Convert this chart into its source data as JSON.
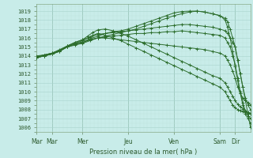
{
  "background_color": "#c8ece9",
  "grid_color_major": "#a8d4ce",
  "grid_color_minor": "#c0e4df",
  "line_color": "#2d6e2d",
  "ylabel_ticks": [
    1006,
    1007,
    1008,
    1009,
    1010,
    1011,
    1012,
    1013,
    1014,
    1015,
    1016,
    1017,
    1018,
    1019
  ],
  "ylim": [
    1005.5,
    1019.8
  ],
  "xlabel": "Pression niveau de la mer( hPa )",
  "xtick_labels": [
    "Mar",
    "Mar",
    "Mer",
    "Jeu",
    "Ven",
    "Sam",
    "Dir"
  ],
  "xtick_positions": [
    0,
    12,
    36,
    72,
    108,
    144,
    156
  ],
  "total_points": 168,
  "series": [
    {
      "points": [
        [
          0,
          1013.8
        ],
        [
          6,
          1014.0
        ],
        [
          12,
          1014.2
        ],
        [
          18,
          1014.5
        ],
        [
          24,
          1015.0
        ],
        [
          30,
          1015.3
        ],
        [
          36,
          1015.5
        ],
        [
          42,
          1015.8
        ],
        [
          48,
          1016.0
        ],
        [
          54,
          1016.2
        ],
        [
          60,
          1016.4
        ],
        [
          66,
          1016.6
        ],
        [
          72,
          1016.8
        ],
        [
          78,
          1017.0
        ],
        [
          84,
          1017.3
        ],
        [
          90,
          1017.6
        ],
        [
          96,
          1017.9
        ],
        [
          102,
          1018.2
        ],
        [
          108,
          1018.5
        ],
        [
          114,
          1018.7
        ],
        [
          120,
          1018.9
        ],
        [
          126,
          1019.0
        ],
        [
          132,
          1018.9
        ],
        [
          138,
          1018.7
        ],
        [
          144,
          1018.5
        ],
        [
          148,
          1018.2
        ],
        [
          150,
          1017.8
        ],
        [
          152,
          1017.0
        ],
        [
          154,
          1016.0
        ],
        [
          156,
          1015.0
        ],
        [
          158,
          1013.5
        ],
        [
          160,
          1012.0
        ],
        [
          162,
          1010.5
        ],
        [
          164,
          1009.0
        ],
        [
          166,
          1007.5
        ],
        [
          168,
          1006.0
        ]
      ]
    },
    {
      "points": [
        [
          0,
          1013.9
        ],
        [
          6,
          1014.1
        ],
        [
          12,
          1014.3
        ],
        [
          18,
          1014.6
        ],
        [
          24,
          1015.0
        ],
        [
          30,
          1015.3
        ],
        [
          36,
          1015.6
        ],
        [
          42,
          1015.9
        ],
        [
          48,
          1016.2
        ],
        [
          54,
          1016.5
        ],
        [
          60,
          1016.7
        ],
        [
          66,
          1016.8
        ],
        [
          72,
          1017.0
        ],
        [
          78,
          1017.3
        ],
        [
          84,
          1017.6
        ],
        [
          90,
          1017.9
        ],
        [
          96,
          1018.2
        ],
        [
          102,
          1018.5
        ],
        [
          108,
          1018.8
        ],
        [
          114,
          1018.95
        ],
        [
          120,
          1019.0
        ],
        [
          126,
          1019.0
        ],
        [
          132,
          1018.9
        ],
        [
          138,
          1018.7
        ],
        [
          144,
          1018.5
        ],
        [
          148,
          1018.0
        ],
        [
          150,
          1017.2
        ],
        [
          152,
          1016.0
        ],
        [
          154,
          1014.5
        ],
        [
          156,
          1012.8
        ],
        [
          158,
          1011.2
        ],
        [
          160,
          1009.8
        ],
        [
          162,
          1008.5
        ],
        [
          164,
          1007.5
        ],
        [
          166,
          1007.0
        ],
        [
          168,
          1006.5
        ]
      ]
    },
    {
      "points": [
        [
          0,
          1013.8
        ],
        [
          6,
          1014.0
        ],
        [
          12,
          1014.2
        ],
        [
          18,
          1014.6
        ],
        [
          24,
          1015.1
        ],
        [
          30,
          1015.5
        ],
        [
          36,
          1015.8
        ],
        [
          40,
          1016.2
        ],
        [
          44,
          1016.6
        ],
        [
          48,
          1016.9
        ],
        [
          54,
          1017.0
        ],
        [
          60,
          1016.8
        ],
        [
          66,
          1016.5
        ],
        [
          72,
          1016.2
        ],
        [
          78,
          1015.8
        ],
        [
          84,
          1015.4
        ],
        [
          90,
          1015.0
        ],
        [
          96,
          1014.6
        ],
        [
          102,
          1014.2
        ],
        [
          108,
          1013.8
        ],
        [
          114,
          1013.4
        ],
        [
          120,
          1013.0
        ],
        [
          126,
          1012.6
        ],
        [
          132,
          1012.2
        ],
        [
          138,
          1011.8
        ],
        [
          144,
          1011.5
        ],
        [
          148,
          1011.0
        ],
        [
          150,
          1010.5
        ],
        [
          152,
          1010.0
        ],
        [
          154,
          1009.5
        ],
        [
          156,
          1009.0
        ],
        [
          158,
          1008.6
        ],
        [
          160,
          1008.3
        ],
        [
          162,
          1008.1
        ],
        [
          164,
          1007.9
        ],
        [
          166,
          1007.7
        ],
        [
          168,
          1007.5
        ]
      ]
    },
    {
      "points": [
        [
          0,
          1013.8
        ],
        [
          6,
          1014.0
        ],
        [
          12,
          1014.2
        ],
        [
          18,
          1014.6
        ],
        [
          24,
          1015.1
        ],
        [
          30,
          1015.4
        ],
        [
          36,
          1015.7
        ],
        [
          40,
          1016.0
        ],
        [
          44,
          1016.3
        ],
        [
          48,
          1016.5
        ],
        [
          54,
          1016.3
        ],
        [
          60,
          1016.0
        ],
        [
          66,
          1015.7
        ],
        [
          72,
          1015.3
        ],
        [
          78,
          1014.9
        ],
        [
          84,
          1014.5
        ],
        [
          90,
          1014.1
        ],
        [
          96,
          1013.7
        ],
        [
          102,
          1013.3
        ],
        [
          108,
          1012.9
        ],
        [
          114,
          1012.5
        ],
        [
          120,
          1012.1
        ],
        [
          126,
          1011.7
        ],
        [
          132,
          1011.3
        ],
        [
          138,
          1010.9
        ],
        [
          144,
          1010.5
        ],
        [
          148,
          1010.0
        ],
        [
          150,
          1009.5
        ],
        [
          152,
          1009.0
        ],
        [
          154,
          1008.5
        ],
        [
          156,
          1008.2
        ],
        [
          158,
          1008.0
        ],
        [
          160,
          1007.9
        ],
        [
          162,
          1007.8
        ],
        [
          164,
          1007.7
        ],
        [
          166,
          1007.6
        ],
        [
          168,
          1007.5
        ]
      ]
    },
    {
      "points": [
        [
          0,
          1013.9
        ],
        [
          6,
          1014.1
        ],
        [
          12,
          1014.3
        ],
        [
          18,
          1014.7
        ],
        [
          24,
          1015.1
        ],
        [
          30,
          1015.5
        ],
        [
          36,
          1015.8
        ],
        [
          42,
          1016.1
        ],
        [
          48,
          1016.4
        ],
        [
          54,
          1016.5
        ],
        [
          60,
          1016.6
        ],
        [
          66,
          1016.7
        ],
        [
          72,
          1016.8
        ],
        [
          78,
          1016.9
        ],
        [
          84,
          1017.0
        ],
        [
          90,
          1017.1
        ],
        [
          96,
          1017.2
        ],
        [
          102,
          1017.3
        ],
        [
          108,
          1017.4
        ],
        [
          114,
          1017.5
        ],
        [
          120,
          1017.5
        ],
        [
          126,
          1017.4
        ],
        [
          132,
          1017.3
        ],
        [
          138,
          1017.2
        ],
        [
          144,
          1017.0
        ],
        [
          148,
          1016.8
        ],
        [
          150,
          1016.5
        ],
        [
          152,
          1016.0
        ],
        [
          154,
          1015.5
        ],
        [
          156,
          1015.0
        ],
        [
          158,
          1013.5
        ],
        [
          160,
          1012.0
        ],
        [
          162,
          1010.5
        ],
        [
          164,
          1009.3
        ],
        [
          166,
          1008.5
        ],
        [
          168,
          1008.0
        ]
      ]
    },
    {
      "points": [
        [
          0,
          1013.9
        ],
        [
          6,
          1014.0
        ],
        [
          12,
          1014.2
        ],
        [
          18,
          1014.5
        ],
        [
          24,
          1015.0
        ],
        [
          30,
          1015.3
        ],
        [
          36,
          1015.5
        ],
        [
          42,
          1015.8
        ],
        [
          48,
          1016.0
        ],
        [
          54,
          1016.1
        ],
        [
          60,
          1016.2
        ],
        [
          66,
          1016.3
        ],
        [
          72,
          1016.4
        ],
        [
          78,
          1016.5
        ],
        [
          84,
          1016.5
        ],
        [
          90,
          1016.6
        ],
        [
          96,
          1016.6
        ],
        [
          102,
          1016.7
        ],
        [
          108,
          1016.7
        ],
        [
          114,
          1016.8
        ],
        [
          120,
          1016.7
        ],
        [
          126,
          1016.6
        ],
        [
          132,
          1016.5
        ],
        [
          138,
          1016.4
        ],
        [
          144,
          1016.3
        ],
        [
          148,
          1016.0
        ],
        [
          150,
          1015.5
        ],
        [
          152,
          1015.0
        ],
        [
          154,
          1014.0
        ],
        [
          156,
          1013.0
        ],
        [
          158,
          1011.5
        ],
        [
          160,
          1010.0
        ],
        [
          162,
          1008.8
        ],
        [
          164,
          1007.8
        ],
        [
          166,
          1007.3
        ],
        [
          168,
          1007.0
        ]
      ]
    },
    {
      "points": [
        [
          0,
          1014.0
        ],
        [
          6,
          1014.1
        ],
        [
          12,
          1014.3
        ],
        [
          18,
          1014.6
        ],
        [
          24,
          1015.0
        ],
        [
          30,
          1015.2
        ],
        [
          36,
          1015.4
        ],
        [
          42,
          1015.7
        ],
        [
          48,
          1016.0
        ],
        [
          54,
          1016.0
        ],
        [
          60,
          1015.9
        ],
        [
          66,
          1015.8
        ],
        [
          72,
          1015.7
        ],
        [
          78,
          1015.6
        ],
        [
          84,
          1015.5
        ],
        [
          90,
          1015.4
        ],
        [
          96,
          1015.3
        ],
        [
          102,
          1015.2
        ],
        [
          108,
          1015.1
        ],
        [
          114,
          1015.0
        ],
        [
          120,
          1014.9
        ],
        [
          126,
          1014.8
        ],
        [
          132,
          1014.7
        ],
        [
          138,
          1014.5
        ],
        [
          144,
          1014.3
        ],
        [
          148,
          1014.0
        ],
        [
          150,
          1013.5
        ],
        [
          152,
          1013.0
        ],
        [
          154,
          1012.3
        ],
        [
          156,
          1011.5
        ],
        [
          158,
          1010.5
        ],
        [
          160,
          1009.8
        ],
        [
          162,
          1009.3
        ],
        [
          164,
          1009.0
        ],
        [
          166,
          1008.8
        ],
        [
          168,
          1008.5
        ]
      ]
    }
  ],
  "vline_positions": [
    0,
    12,
    36,
    72,
    108,
    144,
    156
  ],
  "marker": "+",
  "marker_size": 2.5,
  "linewidth": 0.7
}
